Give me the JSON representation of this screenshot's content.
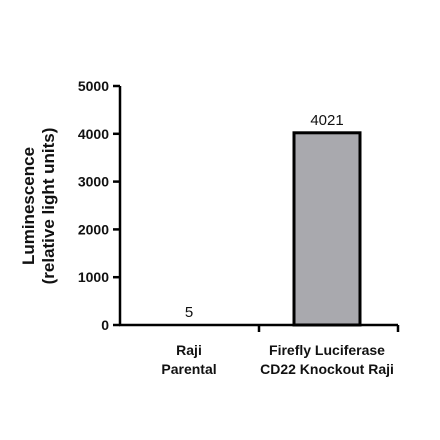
{
  "chart_data": {
    "type": "bar",
    "categories": [
      [
        "Raji",
        "Parental"
      ],
      [
        "Firefly Luciferase",
        "CD22 Knockout Raji"
      ]
    ],
    "values": [
      5,
      4021
    ],
    "data_labels": [
      "5",
      "4021"
    ],
    "ylabel": [
      "Luminescence",
      "(relative light units)"
    ],
    "ylim": [
      0,
      5000
    ],
    "yticks": [
      0,
      1000,
      2000,
      3000,
      4000,
      5000
    ],
    "ytick_labels": [
      "0",
      "1000",
      "2000",
      "3000",
      "4000",
      "5000"
    ],
    "grid": false,
    "legend": "none",
    "colors": {
      "bar_fill": "#a9a9ae",
      "bar_stroke": "#000000",
      "axis": "#000000"
    }
  }
}
